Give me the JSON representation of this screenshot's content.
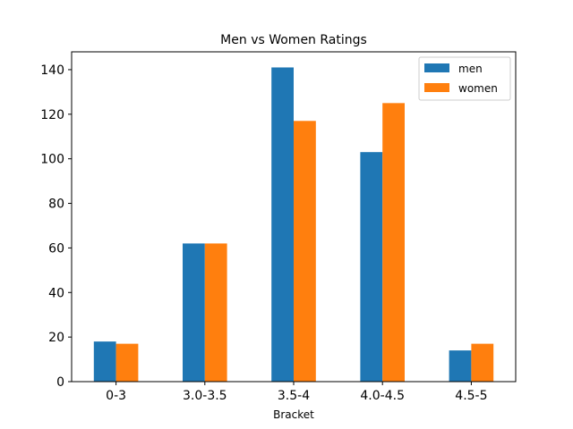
{
  "chart_data": {
    "type": "bar",
    "title": "Men vs Women Ratings",
    "xlabel": "Bracket",
    "ylabel": "",
    "categories": [
      "0-3",
      "3.0-3.5",
      "3.5-4",
      "4.0-4.5",
      "4.5-5"
    ],
    "series": [
      {
        "name": "men",
        "values": [
          18,
          62,
          141,
          103,
          14
        ],
        "color": "#1f77b4"
      },
      {
        "name": "women",
        "values": [
          17,
          62,
          117,
          125,
          17
        ],
        "color": "#ff7f0e"
      }
    ],
    "ylim": [
      0,
      148
    ],
    "yticks": [
      0,
      20,
      40,
      60,
      80,
      100,
      120,
      140
    ],
    "grid": false,
    "legend_position": "top-right"
  }
}
